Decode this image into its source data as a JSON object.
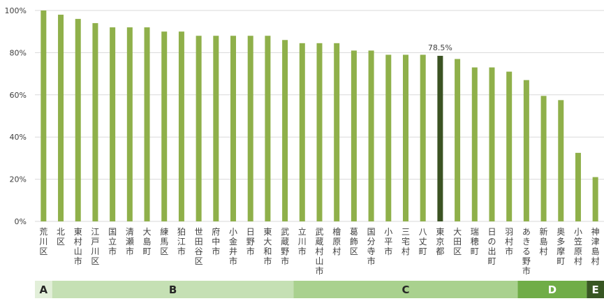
{
  "chart_data": {
    "type": "bar",
    "title": "",
    "xlabel": "",
    "ylabel": "",
    "ylim": [
      0,
      100
    ],
    "y_ticks": [
      "0%",
      "20%",
      "40%",
      "60%",
      "80%",
      "100%"
    ],
    "grid": true,
    "categories": [
      "荒川区",
      "北区",
      "東村山市",
      "江戸川区",
      "国立市",
      "清瀬市",
      "大島町",
      "練馬区",
      "狛江市",
      "世田谷区",
      "府中市",
      "小金井市",
      "日野市",
      "東大和市",
      "武蔵野市",
      "立川市",
      "武蔵村山市",
      "檜原村",
      "葛飾区",
      "国分寺市",
      "小平市",
      "三宅村",
      "八丈町",
      "東京都",
      "大田区",
      "瑞穂町",
      "日の出町",
      "羽村市",
      "あきる野市",
      "新島村",
      "奥多摩町",
      "小笠原村",
      "神津島村"
    ],
    "values": [
      100,
      98,
      96,
      94,
      92,
      92,
      92,
      90,
      90,
      88,
      88,
      88,
      88,
      88,
      86,
      84.5,
      84.5,
      84.5,
      81,
      81,
      79,
      79,
      79,
      78.5,
      77,
      73,
      73,
      71,
      67,
      59.5,
      57.5,
      32.5,
      21
    ],
    "highlight_index": 23,
    "data_labels": [
      {
        "index": 23,
        "text": "78.5%"
      }
    ],
    "colors": {
      "bar": "#8FB04A",
      "highlight": "#3B5323",
      "grid": "#D9D9D9",
      "axis_text": "#404040"
    },
    "groups": [
      {
        "label": "A",
        "from": 0,
        "to": 0,
        "color": "#E2EFD9"
      },
      {
        "label": "B",
        "from": 1,
        "to": 14,
        "color": "#C5E0B4"
      },
      {
        "label": "C",
        "from": 15,
        "to": 27,
        "color": "#A9D18E"
      },
      {
        "label": "D",
        "from": 28,
        "to": 31,
        "color": "#70AD47"
      },
      {
        "label": "E",
        "from": 32,
        "to": 32,
        "color": "#385723"
      }
    ]
  }
}
